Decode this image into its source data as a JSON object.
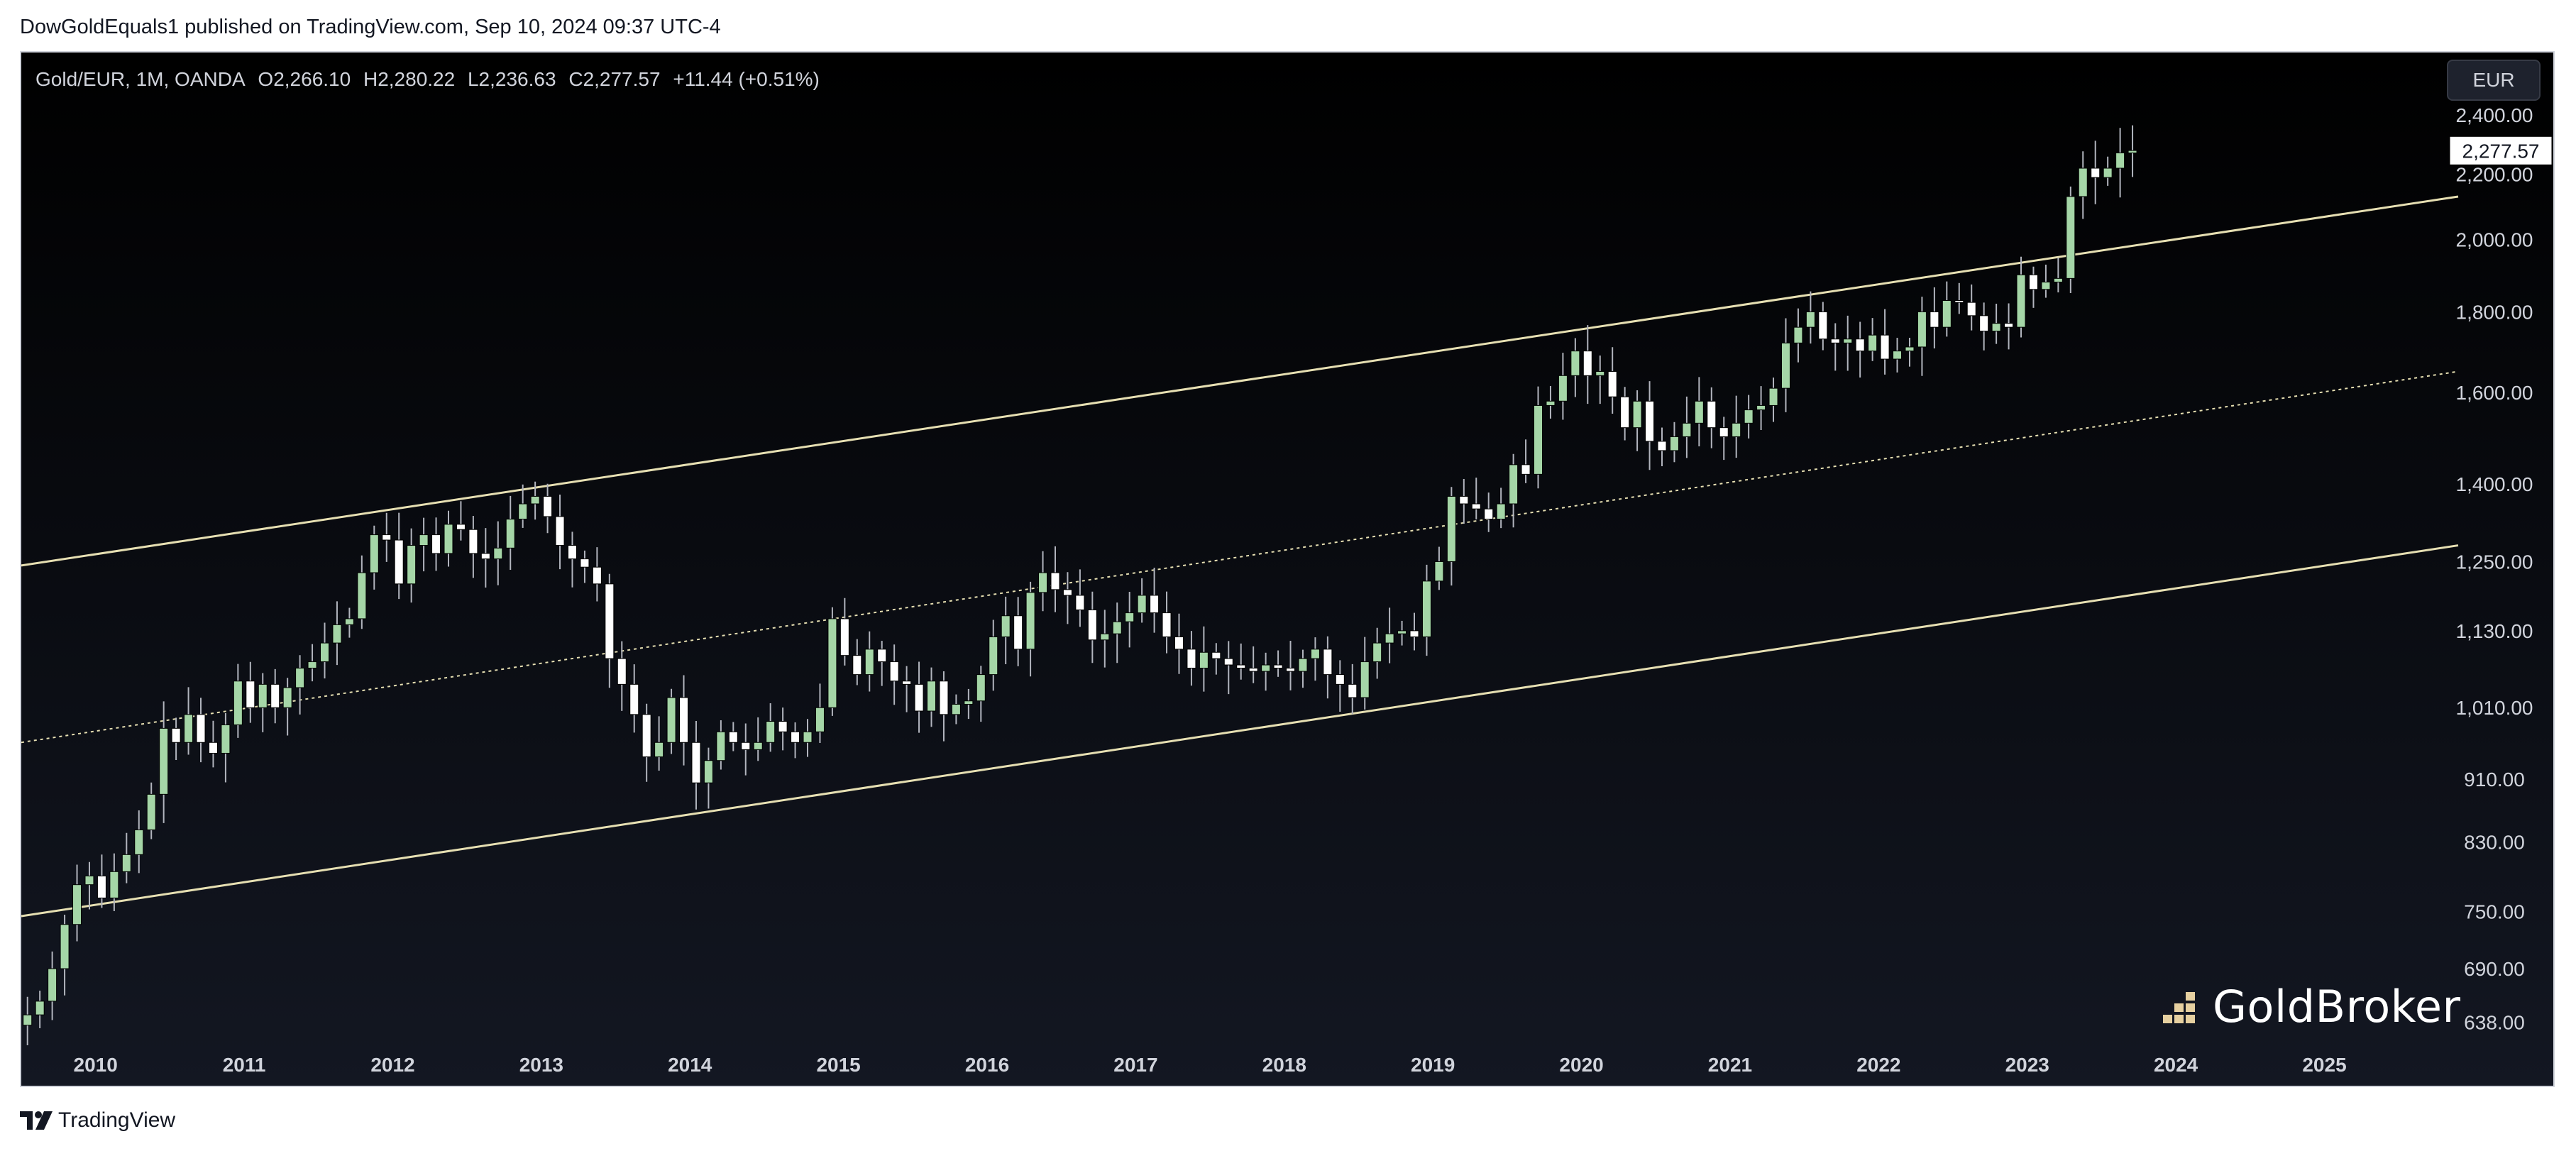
{
  "header": {
    "published_line": "DowGoldEquals1 published on TradingView.com, Sep 10, 2024 09:37 UTC-4"
  },
  "legend": {
    "symbol": "Gold/EUR, 1M, OANDA",
    "open": "O2,266.10",
    "high": "H2,280.22",
    "low": "L2,236.63",
    "close": "C2,277.57",
    "change": "+11.44 (+0.51%)"
  },
  "currency_button": "EUR",
  "brand": {
    "logo_text": "GoldBroker",
    "footer_text": "TradingView"
  },
  "colors": {
    "background_top": "#000000",
    "background_bottom": "#131722",
    "up": "#a5d6a7",
    "down": "#ffffff",
    "wick": "#b2b5be",
    "channel": "#e6dfb2",
    "axis_text": "#d1d4dc",
    "price_label_bg": "#ffffff"
  },
  "icons": {
    "logo": "goldbroker-bars-icon",
    "footer": "tradingview-logo-icon"
  },
  "chart_data": {
    "type": "candlestick",
    "y_scale": "log",
    "ylim": [
      610,
      2470
    ],
    "xlim": [
      "2009-07",
      "2025-11"
    ],
    "y_ticks": [
      "2,400.00",
      "2,200.00",
      "2,000.00",
      "1,800.00",
      "1,600.00",
      "1,400.00",
      "1,250.00",
      "1,130.00",
      "1,010.00",
      "910.00",
      "830.00",
      "750.00",
      "690.00",
      "638.00"
    ],
    "x_ticks": [
      "2010",
      "2011",
      "2012",
      "2013",
      "2014",
      "2015",
      "2016",
      "2017",
      "2018",
      "2019",
      "2020",
      "2021",
      "2022",
      "2023",
      "2024",
      "2025"
    ],
    "last_price_label": "2,277.57",
    "grid": false,
    "start": "2009-07",
    "closes": [
      645,
      658,
      690,
      736,
      780,
      790,
      765,
      795,
      815,
      845,
      890,
      980,
      960,
      1000,
      960,
      945,
      985,
      1050,
      1010,
      1045,
      1010,
      1040,
      1070,
      1080,
      1110,
      1140,
      1150,
      1230,
      1300,
      1290,
      1210,
      1280,
      1300,
      1265,
      1320,
      1310,
      1265,
      1255,
      1275,
      1330,
      1360,
      1375,
      1335,
      1280,
      1255,
      1240,
      1210,
      1085,
      1045,
      1000,
      940,
      960,
      1025,
      960,
      905,
      935,
      975,
      960,
      950,
      960,
      990,
      975,
      960,
      975,
      1010,
      1150,
      1090,
      1060,
      1100,
      1080,
      1050,
      1045,
      1005,
      1050,
      1000,
      1015,
      1020,
      1060,
      1120,
      1155,
      1100,
      1195,
      1230,
      1200,
      1190,
      1165,
      1115,
      1125,
      1145,
      1160,
      1190,
      1160,
      1120,
      1100,
      1070,
      1095,
      1085,
      1075,
      1070,
      1065,
      1075,
      1070,
      1065,
      1085,
      1100,
      1060,
      1045,
      1025,
      1080,
      1110,
      1125,
      1130,
      1120,
      1215,
      1250,
      1375,
      1360,
      1350,
      1330,
      1360,
      1440,
      1420,
      1570,
      1580,
      1640,
      1700,
      1640,
      1650,
      1590,
      1520,
      1580,
      1490,
      1470,
      1500,
      1530,
      1580,
      1520,
      1500,
      1530,
      1560,
      1570,
      1610,
      1720,
      1760,
      1800,
      1730,
      1720,
      1730,
      1700,
      1740,
      1680,
      1700,
      1710,
      1800,
      1760,
      1830,
      1825,
      1790,
      1750,
      1770,
      1760,
      1900,
      1860,
      1880,
      1890,
      2130,
      2220,
      2190,
      2220,
      2270,
      2278
    ]
  }
}
